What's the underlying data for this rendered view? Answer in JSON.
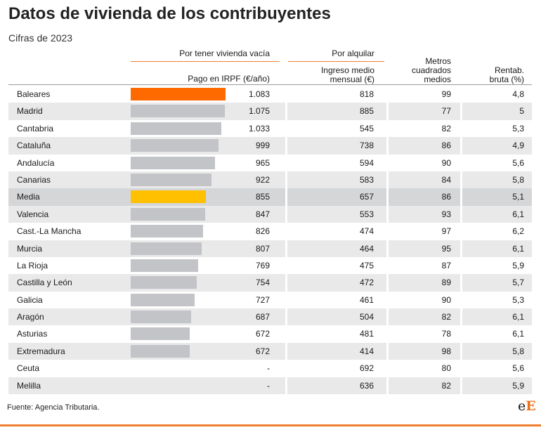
{
  "header": {
    "title": "Datos de vivienda de los contribuyentes",
    "subtitle": "Cifras de 2023"
  },
  "columns": {
    "group_vacia": "Por tener vivienda vacía",
    "group_alquilar": "Por alquilar",
    "irpf_line1": "Pago en IRPF (€/año)",
    "ingreso_line1": "Ingreso medio",
    "ingreso_line2": "mensual (€)",
    "metros_line1": "Metros",
    "metros_line2": "cuadrados",
    "metros_line3": "medios",
    "rent_line1": "Rentab.",
    "rent_line2": "bruta (%)"
  },
  "colors": {
    "highlight": "#ff6a00",
    "average": "#ffc000",
    "bar": "#c3c4c8",
    "accent": "#f07e2e"
  },
  "chart_data": {
    "type": "table",
    "bar_column": "irpf",
    "bar_max": 1083,
    "rows": [
      {
        "region": "Baleares",
        "irpf": 1083,
        "irpf_label": "1.083",
        "ingreso": "818",
        "metros": "99",
        "rentab": "4,8",
        "kind": "highlight"
      },
      {
        "region": "Madrid",
        "irpf": 1075,
        "irpf_label": "1.075",
        "ingreso": "885",
        "metros": "77",
        "rentab": "5",
        "kind": "normal"
      },
      {
        "region": "Cantabria",
        "irpf": 1033,
        "irpf_label": "1.033",
        "ingreso": "545",
        "metros": "82",
        "rentab": "5,3",
        "kind": "normal"
      },
      {
        "region": "Cataluña",
        "irpf": 999,
        "irpf_label": "999",
        "ingreso": "738",
        "metros": "86",
        "rentab": "4,9",
        "kind": "normal"
      },
      {
        "region": "Andalucía",
        "irpf": 965,
        "irpf_label": "965",
        "ingreso": "594",
        "metros": "90",
        "rentab": "5,6",
        "kind": "normal"
      },
      {
        "region": "Canarias",
        "irpf": 922,
        "irpf_label": "922",
        "ingreso": "583",
        "metros": "84",
        "rentab": "5,8",
        "kind": "normal"
      },
      {
        "region": "Media",
        "irpf": 855,
        "irpf_label": "855",
        "ingreso": "657",
        "metros": "86",
        "rentab": "5,1",
        "kind": "average"
      },
      {
        "region": "Valencia",
        "irpf": 847,
        "irpf_label": "847",
        "ingreso": "553",
        "metros": "93",
        "rentab": "6,1",
        "kind": "normal"
      },
      {
        "region": "Cast.-La Mancha",
        "irpf": 826,
        "irpf_label": "826",
        "ingreso": "474",
        "metros": "97",
        "rentab": "6,2",
        "kind": "normal"
      },
      {
        "region": "Murcia",
        "irpf": 807,
        "irpf_label": "807",
        "ingreso": "464",
        "metros": "95",
        "rentab": "6,1",
        "kind": "normal"
      },
      {
        "region": "La Rioja",
        "irpf": 769,
        "irpf_label": "769",
        "ingreso": "475",
        "metros": "87",
        "rentab": "5,9",
        "kind": "normal"
      },
      {
        "region": "Castilla y León",
        "irpf": 754,
        "irpf_label": "754",
        "ingreso": "472",
        "metros": "89",
        "rentab": "5,7",
        "kind": "normal"
      },
      {
        "region": "Galicia",
        "irpf": 727,
        "irpf_label": "727",
        "ingreso": "461",
        "metros": "90",
        "rentab": "5,3",
        "kind": "normal"
      },
      {
        "region": "Aragón",
        "irpf": 687,
        "irpf_label": "687",
        "ingreso": "504",
        "metros": "82",
        "rentab": "6,1",
        "kind": "normal"
      },
      {
        "region": "Asturias",
        "irpf": 672,
        "irpf_label": "672",
        "ingreso": "481",
        "metros": "78",
        "rentab": "6,1",
        "kind": "normal"
      },
      {
        "region": "Extremadura",
        "irpf": 672,
        "irpf_label": "672",
        "ingreso": "414",
        "metros": "98",
        "rentab": "5,8",
        "kind": "normal"
      },
      {
        "region": "Ceuta",
        "irpf": null,
        "irpf_label": "-",
        "ingreso": "692",
        "metros": "80",
        "rentab": "5,6",
        "kind": "normal"
      },
      {
        "region": "Melilla",
        "irpf": null,
        "irpf_label": "-",
        "ingreso": "636",
        "metros": "82",
        "rentab": "5,9",
        "kind": "normal"
      }
    ]
  },
  "footer": {
    "source": "Fuente: Agencia Tributaria.",
    "logo_e": "e",
    "logo_E": "E"
  }
}
